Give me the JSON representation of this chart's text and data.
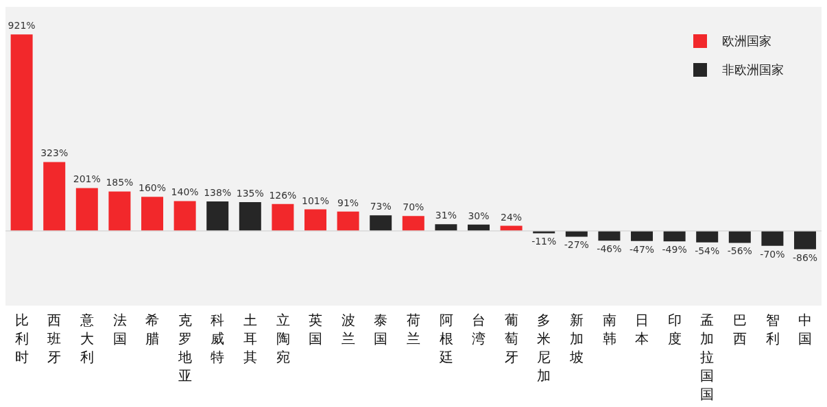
{
  "chart_data": {
    "type": "bar",
    "stacked": true,
    "legend": "top right",
    "grid": false,
    "categories": [
      "比利时",
      "西班牙",
      "意大利",
      "法国",
      "希腊",
      "克罗地亚",
      "科威特",
      "土耳其",
      "立陶宛",
      "英国",
      "波兰",
      "泰国",
      "荷兰",
      "阿根廷",
      "台湾",
      "葡萄牙",
      "多米尼加",
      "新加坡",
      "南韩",
      "日本",
      "印度",
      "孟加拉国国",
      "巴西",
      "智利",
      "中国"
    ],
    "series": [
      {
        "name": "欧洲国家",
        "color": "#f2282b",
        "values": [
          921,
          323,
          201,
          185,
          160,
          140,
          null,
          null,
          126,
          101,
          91,
          null,
          70,
          null,
          null,
          24,
          null,
          null,
          null,
          null,
          null,
          null,
          null,
          null,
          null
        ],
        "value_labels": [
          "921%",
          "323%",
          "201%",
          "185%",
          "160%",
          "140%",
          null,
          null,
          "126%",
          "101%",
          "91%",
          null,
          "70%",
          null,
          null,
          "24%",
          null,
          null,
          null,
          null,
          null,
          null,
          null,
          null,
          null
        ]
      },
      {
        "name": "非欧洲国家",
        "color": "#262626",
        "values": [
          null,
          null,
          null,
          null,
          null,
          null,
          138,
          135,
          null,
          null,
          null,
          73,
          null,
          31,
          30,
          null,
          -11,
          -27,
          -46,
          -47,
          -49,
          -54,
          -56,
          -70,
          -86
        ],
        "value_labels": [
          null,
          null,
          null,
          null,
          null,
          null,
          "138%",
          "135%",
          null,
          null,
          null,
          "73%",
          null,
          "31%",
          "30%",
          null,
          "-11%",
          "-27%",
          "-46%",
          "-47%",
          "-49%",
          "-54%",
          "-56%",
          "-70%",
          "-86%"
        ]
      }
    ],
    "ref_lines": [
      {
        "axis": "y",
        "value": 0,
        "color": "#d9d9d9"
      }
    ]
  }
}
